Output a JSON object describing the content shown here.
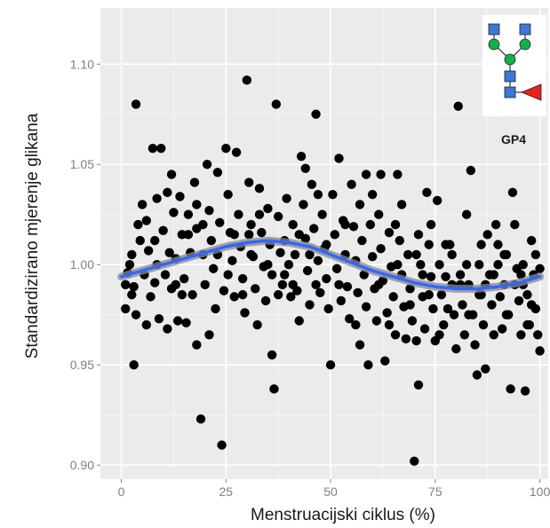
{
  "chart_data": {
    "type": "scatter",
    "title": "",
    "xlabel": "Menstruacijski ciklus (%)",
    "ylabel": "Standardizirano mjerenje glikana",
    "xlim": [
      -5,
      102
    ],
    "ylim": [
      0.893,
      1.128
    ],
    "x_ticks": [
      0,
      25,
      50,
      75,
      100
    ],
    "x_tick_labels": [
      "0",
      "25",
      "50",
      "75",
      "100"
    ],
    "y_ticks": [
      0.9,
      0.95,
      1.0,
      1.05,
      1.1
    ],
    "y_tick_labels": [
      "0.90",
      "0.95",
      "1.00",
      "1.05",
      "1.10"
    ],
    "grid": true,
    "legend": "none",
    "annotation": "GP4",
    "colors": {
      "panel": "#ebebeb",
      "grid": "#ffffff",
      "points": "#000000",
      "trend": "#3366ff",
      "ribbon": "#8a8a8a",
      "glycan_square": "#3b78d8",
      "glycan_circle": "#13b04b",
      "glycan_triangle": "#e8221b"
    },
    "points": [
      [
        1.5,
        0.996
      ],
      [
        2,
        1.0
      ],
      [
        3,
        0.989
      ],
      [
        3.5,
        1.08
      ],
      [
        3,
        0.95
      ],
      [
        3.5,
        0.975
      ],
      [
        4,
        1.02
      ],
      [
        4.5,
        1.012
      ],
      [
        2.5,
        1.005
      ],
      [
        1,
        0.978
      ],
      [
        5,
        1.03
      ],
      [
        5.5,
        0.995
      ],
      [
        6,
        1.022
      ],
      [
        6.5,
        1.007
      ],
      [
        7,
        0.984
      ],
      [
        7.5,
        1.058
      ],
      [
        8,
        1.012
      ],
      [
        8,
        0.991
      ],
      [
        8.5,
        1.033
      ],
      [
        9,
        0.973
      ],
      [
        9.5,
        1.058
      ],
      [
        10,
        1.017
      ],
      [
        10.5,
        0.995
      ],
      [
        11,
        1.036
      ],
      [
        11,
        0.968
      ],
      [
        11.5,
        1.006
      ],
      [
        12,
        0.988
      ],
      [
        12.5,
        1.026
      ],
      [
        13,
        1.003
      ],
      [
        13.5,
        0.972
      ],
      [
        14,
        1.034
      ],
      [
        14.5,
        1.015
      ],
      [
        15,
        0.993
      ],
      [
        15.5,
        0.971
      ],
      [
        16,
        1.025
      ],
      [
        16.5,
        1.006
      ],
      [
        17,
        0.985
      ],
      [
        17.5,
        1.041
      ],
      [
        18,
        1.018
      ],
      [
        18,
        0.96
      ],
      [
        19,
        0.923
      ],
      [
        19.5,
        1.005
      ],
      [
        20,
        0.99
      ],
      [
        20.5,
        1.05
      ],
      [
        21,
        1.027
      ],
      [
        21.5,
        1.012
      ],
      [
        22,
        0.998
      ],
      [
        22.5,
        0.978
      ],
      [
        23,
        1.046
      ],
      [
        23.5,
        1.021
      ],
      [
        24,
        0.91
      ],
      [
        24.5,
        0.987
      ],
      [
        25,
        1.058
      ],
      [
        25.5,
        1.035
      ],
      [
        26,
        1.016
      ],
      [
        26.5,
        1.002
      ],
      [
        27,
        0.984
      ],
      [
        27.5,
        1.056
      ],
      [
        28,
        1.025
      ],
      [
        28.5,
        1.009
      ],
      [
        29,
        0.993
      ],
      [
        29.5,
        0.976
      ],
      [
        30,
        1.092
      ],
      [
        30.5,
        1.041
      ],
      [
        31,
        1.02
      ],
      [
        31.5,
        1.004
      ],
      [
        32,
        0.988
      ],
      [
        32.5,
        0.97
      ],
      [
        33,
        1.038
      ],
      [
        33.5,
        1.016
      ],
      [
        34,
        0.999
      ],
      [
        34.5,
        0.982
      ],
      [
        35,
        1.028
      ],
      [
        35.5,
        1.01
      ],
      [
        36,
        0.995
      ],
      [
        36,
        0.955
      ],
      [
        36.5,
        0.938
      ],
      [
        37,
        1.08
      ],
      [
        37.5,
        1.024
      ],
      [
        38,
        1.006
      ],
      [
        38.5,
        0.99
      ],
      [
        39,
        1.012
      ],
      [
        39.5,
        1.033
      ],
      [
        40,
        1.0
      ],
      [
        40.5,
        0.984
      ],
      [
        41,
        1.02
      ],
      [
        41.5,
        1.005
      ],
      [
        42,
        0.987
      ],
      [
        42.5,
        0.972
      ],
      [
        43,
        1.054
      ],
      [
        43.5,
        1.03
      ],
      [
        44,
        1.013
      ],
      [
        44.5,
        0.997
      ],
      [
        45,
        0.98
      ],
      [
        45.5,
        1.04
      ],
      [
        46,
        1.018
      ],
      [
        46.5,
        1.075
      ],
      [
        47,
        1.002
      ],
      [
        47.5,
        0.986
      ],
      [
        48,
        1.025
      ],
      [
        48.5,
        1.008
      ],
      [
        49,
        0.993
      ],
      [
        49.5,
        0.978
      ],
      [
        50,
        0.95
      ],
      [
        50.5,
        1.035
      ],
      [
        51,
        1.015
      ],
      [
        51.5,
        0.998
      ],
      [
        52,
        1.053
      ],
      [
        52.5,
        0.982
      ],
      [
        53,
        1.022
      ],
      [
        53.5,
        1.005
      ],
      [
        54,
        0.989
      ],
      [
        54.5,
        0.973
      ],
      [
        55,
        1.04
      ],
      [
        55.5,
        1.019
      ],
      [
        56,
        1.002
      ],
      [
        56.5,
        0.986
      ],
      [
        57,
        1.03
      ],
      [
        57.5,
        1.012
      ],
      [
        58,
        0.995
      ],
      [
        58.5,
        0.979
      ],
      [
        59,
        0.95
      ],
      [
        59.5,
        1.02
      ],
      [
        60,
        1.004
      ],
      [
        60.5,
        0.988
      ],
      [
        61,
        0.972
      ],
      [
        61.5,
        1.025
      ],
      [
        62,
        1.008
      ],
      [
        62.5,
        0.992
      ],
      [
        63,
        0.952
      ],
      [
        63.5,
        0.976
      ],
      [
        64,
        1.016
      ],
      [
        64.5,
        0.999
      ],
      [
        65,
        0.984
      ],
      [
        65.5,
        0.965
      ],
      [
        66,
        1.045
      ],
      [
        66.5,
        1.012
      ],
      [
        67,
        0.995
      ],
      [
        67.5,
        0.979
      ],
      [
        68,
        0.963
      ],
      [
        68.5,
        1.005
      ],
      [
        69,
        0.988
      ],
      [
        69.5,
        0.972
      ],
      [
        70,
        0.902
      ],
      [
        70.5,
        0.962
      ],
      [
        71,
        0.94
      ],
      [
        71.5,
        1.0
      ],
      [
        72,
        0.984
      ],
      [
        72.5,
        0.968
      ],
      [
        73,
        1.036
      ],
      [
        73.5,
        1.01
      ],
      [
        74,
        0.994
      ],
      [
        74.5,
        0.978
      ],
      [
        75,
        0.962
      ],
      [
        75.5,
        1.032
      ],
      [
        76,
        1.0
      ],
      [
        76.5,
        0.985
      ],
      [
        77,
        0.97
      ],
      [
        77.5,
        0.994
      ],
      [
        78,
        0.978
      ],
      [
        78.5,
        1.01
      ],
      [
        79,
        0.99
      ],
      [
        79.5,
        0.975
      ],
      [
        80,
        0.958
      ],
      [
        80.5,
        1.079
      ],
      [
        81,
        0.995
      ],
      [
        81.5,
        0.98
      ],
      [
        82,
        0.965
      ],
      [
        82.5,
        1.025
      ],
      [
        83,
        0.99
      ],
      [
        83.5,
        1.047
      ],
      [
        84,
        0.975
      ],
      [
        84.5,
        0.96
      ],
      [
        85,
        0.945
      ],
      [
        85.5,
        1.0
      ],
      [
        86,
        0.985
      ],
      [
        86.5,
        0.97
      ],
      [
        87,
        0.948
      ],
      [
        87.5,
        1.015
      ],
      [
        88,
        0.995
      ],
      [
        88.5,
        0.98
      ],
      [
        89,
        0.965
      ],
      [
        89.5,
        1.02
      ],
      [
        90,
        1.0
      ],
      [
        90.5,
        0.984
      ],
      [
        91,
        0.968
      ],
      [
        91.5,
        0.99
      ],
      [
        92,
        1.005
      ],
      [
        92.5,
        0.975
      ],
      [
        93,
        0.938
      ],
      [
        93.5,
        1.036
      ],
      [
        94,
        1.02
      ],
      [
        94.5,
        0.998
      ],
      [
        95,
        0.982
      ],
      [
        95.5,
        0.965
      ],
      [
        96,
        1.0
      ],
      [
        96.5,
        0.937
      ],
      [
        97,
        0.985
      ],
      [
        97.5,
        0.97
      ],
      [
        98,
        1.012
      ],
      [
        98.5,
        0.995
      ],
      [
        99,
        0.978
      ],
      [
        99.5,
        0.965
      ],
      [
        100,
        0.998
      ],
      [
        100,
        0.957
      ],
      [
        1,
        0.99
      ],
      [
        6,
        0.97
      ],
      [
        12,
        1.045
      ],
      [
        16,
        1.015
      ],
      [
        21,
        0.965
      ],
      [
        27,
        1.015
      ],
      [
        31,
        1.005
      ],
      [
        35,
        1.0
      ],
      [
        41,
        0.99
      ],
      [
        44,
        1.048
      ],
      [
        49,
        1.01
      ],
      [
        52,
        0.99
      ],
      [
        57,
        0.96
      ],
      [
        60,
        1.035
      ],
      [
        64,
        0.97
      ],
      [
        67,
        1.03
      ],
      [
        71,
        1.015
      ],
      [
        74,
        1.02
      ],
      [
        79,
        1.005
      ],
      [
        83,
        0.975
      ],
      [
        87,
        0.99
      ],
      [
        90,
        1.01
      ],
      [
        94,
        0.99
      ],
      [
        97,
        0.97
      ],
      [
        99,
        1.005
      ],
      [
        13,
        0.99
      ],
      [
        18,
        1.03
      ],
      [
        23,
        1.005
      ],
      [
        29,
        0.985
      ],
      [
        33,
        1.025
      ],
      [
        39,
        0.995
      ],
      [
        45,
        1.005
      ],
      [
        47,
        1.035
      ],
      [
        56,
        0.97
      ],
      [
        62,
        1.045
      ],
      [
        66,
        1.0
      ],
      [
        69,
        0.98
      ],
      [
        72,
        0.995
      ],
      [
        76,
        0.965
      ],
      [
        81,
        0.99
      ],
      [
        86,
        1.01
      ],
      [
        89,
        0.995
      ],
      [
        92,
        0.975
      ],
      [
        96,
        0.99
      ],
      [
        98,
        0.98
      ],
      [
        2.5,
        0.985
      ],
      [
        8.5,
        1.0
      ],
      [
        14.5,
        0.985
      ],
      [
        19.5,
        1.02
      ],
      [
        25.5,
        0.995
      ],
      [
        30.5,
        1.015
      ],
      [
        37.5,
        0.985
      ],
      [
        42.5,
        1.015
      ],
      [
        46.5,
        0.99
      ],
      [
        53.5,
        1.02
      ],
      [
        58.5,
        1.045
      ],
      [
        61.5,
        0.99
      ],
      [
        65.5,
        1.02
      ],
      [
        70.5,
        1.005
      ],
      [
        73.5,
        0.985
      ],
      [
        77.5,
        1.01
      ],
      [
        82.5,
        1.0
      ],
      [
        85.5,
        0.985
      ],
      [
        91.5,
        1.005
      ],
      [
        95.5,
        0.995
      ]
    ],
    "trend": {
      "x": [
        0,
        5,
        10,
        15,
        20,
        25,
        30,
        35,
        40,
        45,
        50,
        55,
        60,
        65,
        70,
        75,
        80,
        85,
        90,
        95,
        100
      ],
      "y": [
        0.994,
        0.997,
        1.0,
        1.003,
        1.006,
        1.009,
        1.011,
        1.012,
        1.011,
        1.009,
        1.005,
        1.001,
        0.997,
        0.994,
        0.991,
        0.989,
        0.988,
        0.988,
        0.989,
        0.991,
        0.994
      ]
    }
  }
}
